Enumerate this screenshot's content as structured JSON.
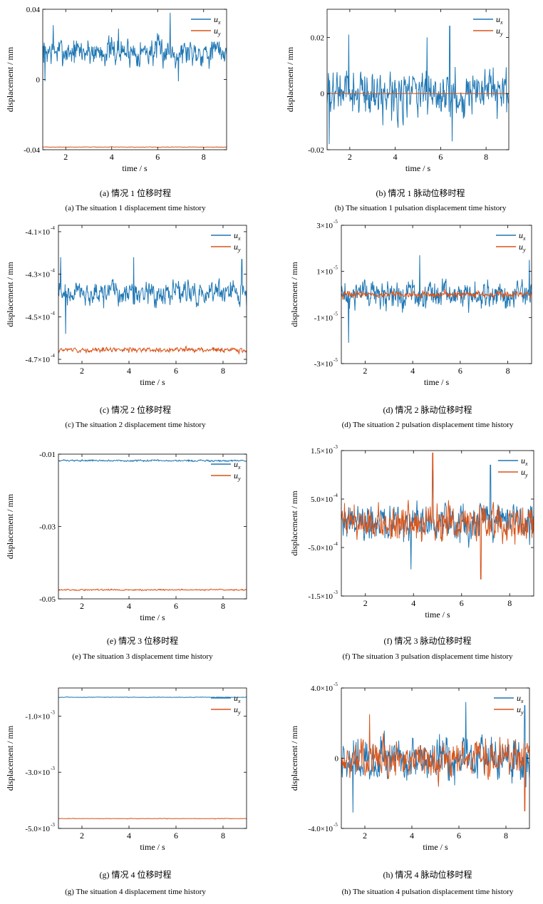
{
  "chart_data": [
    {
      "id": "a",
      "type": "line",
      "caption_cn": "(a) 情况 1 位移时程",
      "caption_en": "(a) The situation 1 displacement time history",
      "xlabel": "time / s",
      "ylabel": "displacement / mm",
      "xlim": [
        1,
        9
      ],
      "ylim": [
        -0.04,
        0.04
      ],
      "xticks": [
        2,
        4,
        6,
        8
      ],
      "yticks": [
        {
          "v": 0.04,
          "t": "0.04"
        },
        {
          "v": 0,
          "t": "0"
        },
        {
          "v": -0.04,
          "t": "-0.04"
        }
      ],
      "legend": "top-right",
      "series": [
        {
          "name": "u",
          "sub": "x",
          "color": "#1f77b4",
          "mean": 0.016,
          "noise": 0.0065,
          "spikes": [
            [
              6.55,
              0.038
            ],
            [
              1.45,
              0.031
            ],
            [
              4.3,
              0.029
            ],
            [
              6.9,
              -0.001
            ],
            [
              1.1,
              -0.001
            ]
          ]
        },
        {
          "name": "u",
          "sub": "y",
          "color": "#d9541a",
          "mean": -0.0385,
          "noise": 0.00012,
          "spikes": []
        }
      ]
    },
    {
      "id": "b",
      "type": "line",
      "caption_cn": "(b) 情况 1 脉动位移时程",
      "caption_en": "(b) The situation 1 pulsation displacement time history",
      "xlabel": "time / s",
      "ylabel": "displacement / mm",
      "xlim": [
        1,
        9
      ],
      "ylim": [
        -0.02,
        0.03
      ],
      "xticks": [
        2,
        4,
        6,
        8
      ],
      "yticks": [
        {
          "v": 0.02,
          "t": "0.02"
        },
        {
          "v": 0,
          "t": "0"
        },
        {
          "v": -0.02,
          "t": "-0.02"
        }
      ],
      "legend": "top-right",
      "series": [
        {
          "name": "u",
          "sub": "x",
          "color": "#1f77b4",
          "mean": 0.0,
          "noise": 0.0065,
          "spikes": [
            [
              6.4,
              0.024
            ],
            [
              1.95,
              0.021
            ],
            [
              5.4,
              0.02
            ],
            [
              1.1,
              -0.018
            ],
            [
              6.5,
              -0.017
            ]
          ]
        },
        {
          "name": "u",
          "sub": "y",
          "color": "#d9541a",
          "mean": 0.0,
          "noise": 8e-05,
          "spikes": []
        }
      ]
    },
    {
      "id": "c",
      "type": "line",
      "caption_cn": "(c) 情况 2 位移时程",
      "caption_en": "(c) The situation 2 displacement time history",
      "xlabel": "time / s",
      "ylabel": "displacement / mm",
      "xlim": [
        1,
        9
      ],
      "ylim": [
        -4.72,
        -4.07
      ],
      "xticks": [
        2,
        4,
        6,
        8
      ],
      "yticks": [
        {
          "v": -4.1,
          "t": "-4.1×10",
          "e": "-4"
        },
        {
          "v": -4.3,
          "t": "-4.3×10",
          "e": "-4"
        },
        {
          "v": -4.5,
          "t": "-4.5×10",
          "e": "-4"
        },
        {
          "v": -4.7,
          "t": "-4.7×10",
          "e": "-4"
        }
      ],
      "legend": "top-right",
      "series": [
        {
          "name": "u",
          "sub": "x",
          "color": "#1f77b4",
          "mean": -4.39,
          "noise": 0.045,
          "spikes": [
            [
              1.1,
              -4.22
            ],
            [
              4.2,
              -4.22
            ],
            [
              1.3,
              -4.58
            ],
            [
              8.8,
              -4.23
            ]
          ]
        },
        {
          "name": "u",
          "sub": "y",
          "color": "#d9541a",
          "mean": -4.655,
          "noise": 0.009,
          "spikes": []
        }
      ]
    },
    {
      "id": "d",
      "type": "line",
      "caption_cn": "(d) 情况 2 脉动位移时程",
      "caption_en": "(d) The situation 2 pulsation displacement time history",
      "xlabel": "time / s",
      "ylabel": "displacement / mm",
      "xlim": [
        1,
        9
      ],
      "ylim": [
        -3,
        3
      ],
      "xticks": [
        2,
        4,
        6,
        8
      ],
      "yticks": [
        {
          "v": 3,
          "t": "3×10",
          "e": "-5"
        },
        {
          "v": 1,
          "t": "1×10",
          "e": "-5"
        },
        {
          "v": -1,
          "t": "-1×10",
          "e": "-5"
        },
        {
          "v": -3,
          "t": "-3×10",
          "e": "-5"
        }
      ],
      "legend": "top-right",
      "series": [
        {
          "name": "u",
          "sub": "x",
          "color": "#1f77b4",
          "mean": 0.0,
          "noise": 0.5,
          "spikes": [
            [
              1.3,
              -2.1
            ],
            [
              4.3,
              1.7
            ],
            [
              8.9,
              1.5
            ]
          ]
        },
        {
          "name": "u",
          "sub": "y",
          "color": "#d9541a",
          "mean": 0.0,
          "noise": 0.12,
          "spikes": []
        }
      ]
    },
    {
      "id": "e",
      "type": "line",
      "caption_cn": "(e) 情况 3 位移时程",
      "caption_en": "(e) The situation 3 displacement time history",
      "xlabel": "time / s",
      "ylabel": "displacement / mm",
      "xlim": [
        1,
        9
      ],
      "ylim": [
        -0.05,
        -0.01
      ],
      "xticks": [
        2,
        4,
        6,
        8
      ],
      "yticks": [
        {
          "v": -0.01,
          "t": "-0.01"
        },
        {
          "v": -0.03,
          "t": "-0.03"
        },
        {
          "v": -0.05,
          "t": "-0.05"
        }
      ],
      "legend": "top-right",
      "series": [
        {
          "name": "u",
          "sub": "x",
          "color": "#1f77b4",
          "mean": -0.0118,
          "noise": 0.00018,
          "spikes": []
        },
        {
          "name": "u",
          "sub": "y",
          "color": "#d9541a",
          "mean": -0.0475,
          "noise": 0.00016,
          "spikes": []
        }
      ]
    },
    {
      "id": "f",
      "type": "line",
      "caption_cn": "(f) 情况 3 脉动位移时程",
      "caption_en": "(f) The situation 3 pulsation displacement time history",
      "xlabel": "time / s",
      "ylabel": "displacement / mm",
      "xlim": [
        1,
        9
      ],
      "ylim": [
        -1.5,
        1.5
      ],
      "xticks": [
        2,
        4,
        6,
        8
      ],
      "yticks": [
        {
          "v": 1.5,
          "t": "1.5×10",
          "e": "-3"
        },
        {
          "v": 0.5,
          "t": "5.0×10",
          "e": "-4"
        },
        {
          "v": -0.5,
          "t": "-5.0×10",
          "e": "-4"
        },
        {
          "v": -1.5,
          "t": "-1.5×10",
          "e": "-3"
        }
      ],
      "legend": "top-right",
      "series": [
        {
          "name": "u",
          "sub": "x",
          "color": "#1f77b4",
          "mean": 0.0,
          "noise": 0.32,
          "spikes": [
            [
              4.8,
              1.1
            ],
            [
              7.2,
              1.2
            ],
            [
              3.9,
              -0.95
            ]
          ]
        },
        {
          "name": "u",
          "sub": "y",
          "color": "#d9541a",
          "mean": 0.0,
          "noise": 0.3,
          "spikes": [
            [
              4.8,
              1.45
            ],
            [
              6.8,
              -1.15
            ]
          ]
        }
      ]
    },
    {
      "id": "g",
      "type": "line",
      "caption_cn": "(g) 情况 4 位移时程",
      "caption_en": "(g) The situation 4 displacement time history",
      "xlabel": "time / s",
      "ylabel": "displacement / mm",
      "xlim": [
        1,
        9
      ],
      "ylim": [
        -5,
        0
      ],
      "xticks": [
        2,
        4,
        6,
        8
      ],
      "yticks": [
        {
          "v": -1,
          "t": "-1.0×10",
          "e": "-3"
        },
        {
          "v": -3,
          "t": "-3.0×10",
          "e": "-3"
        },
        {
          "v": -5,
          "t": "-5.0×10",
          "e": "-3"
        }
      ],
      "legend": "top-right",
      "series": [
        {
          "name": "u",
          "sub": "x",
          "color": "#1f77b4",
          "mean": -0.33,
          "noise": 0.008,
          "spikes": []
        },
        {
          "name": "u",
          "sub": "y",
          "color": "#d9541a",
          "mean": -4.65,
          "noise": 0.008,
          "spikes": []
        }
      ]
    },
    {
      "id": "h",
      "type": "line",
      "caption_cn": "(h) 情况 4 脉动位移时程",
      "caption_en": "(h) The situation 4 pulsation displacement time history",
      "xlabel": "time / s",
      "ylabel": "displacement / mm",
      "xlim": [
        1,
        9
      ],
      "ylim": [
        -4,
        4
      ],
      "xticks": [
        2,
        4,
        6,
        8
      ],
      "yticks": [
        {
          "v": 4,
          "t": "4.0×10",
          "e": "-5"
        },
        {
          "v": 0,
          "t": "0"
        },
        {
          "v": -4,
          "t": "-4.0×10",
          "e": "-5"
        }
      ],
      "legend": "top-right",
      "series": [
        {
          "name": "u",
          "sub": "x",
          "color": "#1f77b4",
          "mean": 0.0,
          "noise": 1.0,
          "spikes": [
            [
              1.5,
              -3.1
            ],
            [
              6.3,
              3.2
            ],
            [
              8.8,
              3.0
            ]
          ]
        },
        {
          "name": "u",
          "sub": "y",
          "color": "#d9541a",
          "mean": 0.0,
          "noise": 0.85,
          "spikes": [
            [
              2.2,
              2.5
            ],
            [
              8.8,
              -3.0
            ]
          ]
        }
      ]
    }
  ]
}
